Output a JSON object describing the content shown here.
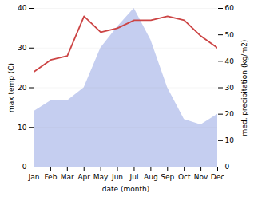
{
  "chart_data": {
    "type": "line",
    "xlabel": "date (month)",
    "ylabel": "max temp (C)",
    "y2label": "med. precipitation (kg/m2)",
    "categories": [
      "Jan",
      "Feb",
      "Mar",
      "Apr",
      "May",
      "Jun",
      "Jul",
      "Aug",
      "Sep",
      "Oct",
      "Nov",
      "Dec"
    ],
    "series": [
      {
        "type": "area",
        "axis": "y2",
        "color": "#c5cef0",
        "values": [
          21,
          25,
          25,
          30,
          45,
          53,
          60,
          48,
          30,
          18,
          16,
          20
        ]
      },
      {
        "type": "line",
        "axis": "y",
        "color": "#cc4444",
        "values": [
          24,
          27,
          28,
          38,
          34,
          35,
          37,
          37,
          38,
          37,
          33,
          30
        ]
      }
    ],
    "ylim": [
      0,
      40
    ],
    "yticks": [
      0,
      10,
      20,
      30,
      40
    ],
    "y2lim": [
      0,
      60
    ],
    "y2ticks": [
      0,
      10,
      20,
      30,
      40,
      50,
      60
    ],
    "grid": true
  }
}
